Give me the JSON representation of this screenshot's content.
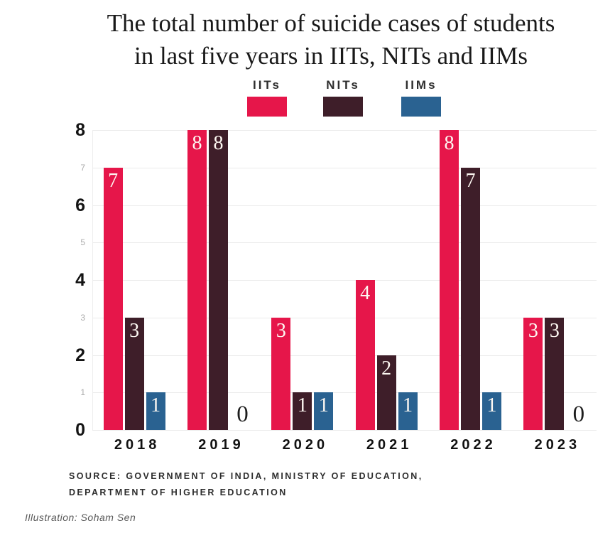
{
  "title": {
    "line1": "The total number of suicide cases of students",
    "line2": "in last five years in IITs, NITs and IIMs"
  },
  "legend": [
    {
      "label": "IITs",
      "color": "#e6164a"
    },
    {
      "label": "NITs",
      "color": "#3e1e29"
    },
    {
      "label": "IIMs",
      "color": "#2a6291"
    }
  ],
  "chart_data": {
    "type": "bar",
    "title": "The total number of suicide cases of students in last five years in IITs, NITs and IIMs",
    "categories": [
      "2018",
      "2019",
      "2020",
      "2021",
      "2022",
      "2023"
    ],
    "series": [
      {
        "name": "IITs",
        "color": "#e6164a",
        "values": [
          7,
          8,
          3,
          4,
          8,
          3
        ]
      },
      {
        "name": "NITs",
        "color": "#3e1e29",
        "values": [
          3,
          8,
          1,
          2,
          7,
          3
        ]
      },
      {
        "name": "IIMs",
        "color": "#2a6291",
        "values": [
          1,
          0,
          1,
          1,
          1,
          0
        ]
      }
    ],
    "xlabel": "",
    "ylabel": "",
    "ylim": [
      0,
      8
    ],
    "yticks": [
      0,
      1,
      2,
      3,
      4,
      5,
      6,
      7,
      8
    ],
    "grid": true,
    "legend_position": "top",
    "value_labels": true
  },
  "source": {
    "line1": "SOURCE: GOVERNMENT OF INDIA, MINISTRY OF EDUCATION,",
    "line2": "DEPARTMENT OF HIGHER EDUCATION"
  },
  "credit": "Illustration: Soham Sen",
  "colors": {
    "background": "#ffffff",
    "gridline": "#ebebeb",
    "title_text": "#191919",
    "axis_major": "#141414",
    "axis_minor": "#ababab",
    "bar_label": "#fdf8f2",
    "zero_label": "#1e1e1e",
    "source_text": "#2d2d2d",
    "credit_text": "#595959"
  }
}
